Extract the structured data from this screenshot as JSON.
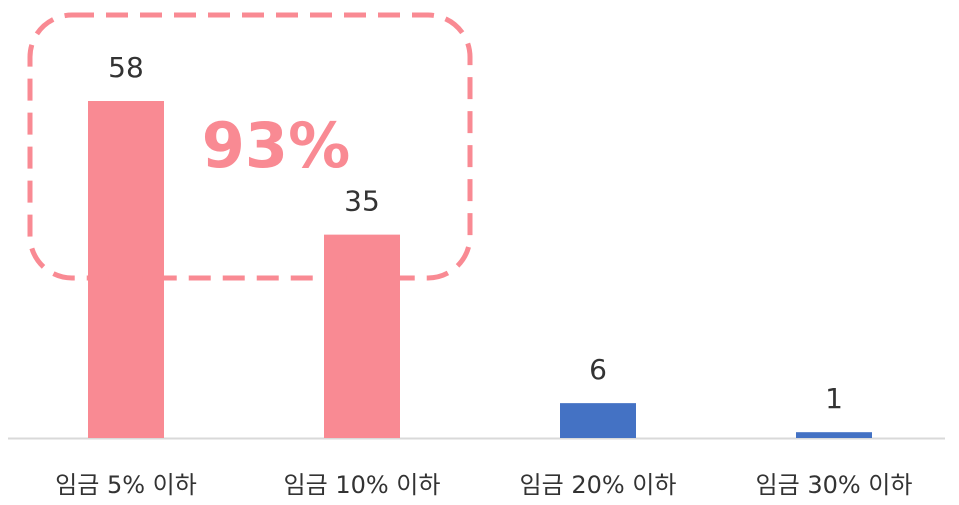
{
  "chart_data": {
    "type": "bar",
    "categories": [
      "임금 5% 이하",
      "임금 10% 이하",
      "임금 20% 이하",
      "임금 30% 이하"
    ],
    "values": [
      58,
      35,
      6,
      1
    ],
    "colors": [
      "#f98a93",
      "#f98a93",
      "#4472c4",
      "#4472c4"
    ],
    "annotation": "93%"
  }
}
